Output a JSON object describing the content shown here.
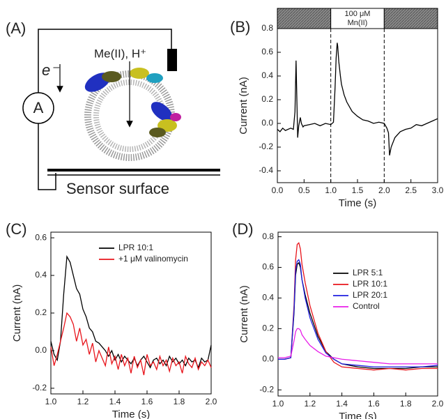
{
  "panel_a": {
    "label": "(A)",
    "ion_label": "Me(II), H⁺",
    "electron_label": "e⁻",
    "ammeter_label": "A",
    "surface_label": "Sensor surface"
  },
  "chart_data": [
    {
      "type": "line",
      "panel_label": "(B)",
      "xlabel": "Time (s)",
      "ylabel": "Current (nA)",
      "color": "#000000",
      "annotations": [
        "100 μM",
        "Mn(II)"
      ],
      "vlines": [
        1,
        2
      ],
      "x": [
        0,
        0.05,
        0.1,
        0.15,
        0.2,
        0.25,
        0.3,
        0.33,
        0.35,
        0.37,
        0.38,
        0.4,
        0.43,
        0.45,
        0.48,
        0.5,
        0.6,
        0.7,
        0.8,
        0.9,
        1.0,
        1.05,
        1.08,
        1.1,
        1.12,
        1.13,
        1.15,
        1.18,
        1.2,
        1.25,
        1.3,
        1.4,
        1.5,
        1.6,
        1.7,
        1.8,
        1.9,
        2.0,
        2.05,
        2.08,
        2.1,
        2.13,
        2.2,
        2.3,
        2.4,
        2.5,
        2.6,
        2.7,
        2.8,
        2.9,
        3.0
      ],
      "values": [
        -0.05,
        -0.07,
        -0.04,
        -0.06,
        -0.05,
        -0.04,
        -0.05,
        0.1,
        0.53,
        0.1,
        -0.12,
        -0.02,
        0.05,
        0.0,
        -0.03,
        -0.02,
        -0.01,
        0.0,
        -0.02,
        0.0,
        -0.01,
        0.01,
        0.3,
        0.55,
        0.68,
        0.65,
        0.52,
        0.4,
        0.33,
        0.24,
        0.18,
        0.1,
        0.06,
        0.03,
        0.02,
        0.0,
        0.01,
        0.0,
        -0.04,
        -0.08,
        -0.27,
        -0.2,
        -0.12,
        -0.07,
        -0.05,
        -0.04,
        -0.01,
        -0.02,
        0.0,
        0.02,
        0.04
      ],
      "xlim": [
        0,
        3
      ],
      "ylim": [
        -0.5,
        0.8
      ],
      "xticks": [
        {
          "value": 0,
          "label": "0.0"
        },
        0.5,
        {
          "value": 1,
          "label": "1.0"
        },
        1.5,
        {
          "value": 2,
          "label": "2.0"
        },
        2.5,
        {
          "value": 3,
          "label": "3.0"
        }
      ],
      "yticks": [
        -0.4,
        -0.2,
        {
          "value": 0,
          "label": "0.0"
        },
        0.2,
        0.4,
        0.6,
        0.8
      ]
    },
    {
      "type": "line",
      "panel_label": "(C)",
      "xlabel": "Time (s)",
      "ylabel": "Current (nA)",
      "x": [
        1.0,
        1.02,
        1.04,
        1.06,
        1.08,
        1.1,
        1.12,
        1.14,
        1.16,
        1.18,
        1.2,
        1.22,
        1.24,
        1.26,
        1.28,
        1.3,
        1.32,
        1.34,
        1.36,
        1.38,
        1.4,
        1.42,
        1.44,
        1.46,
        1.48,
        1.5,
        1.52,
        1.54,
        1.56,
        1.58,
        1.6,
        1.62,
        1.64,
        1.66,
        1.68,
        1.7,
        1.72,
        1.74,
        1.76,
        1.78,
        1.8,
        1.82,
        1.84,
        1.86,
        1.88,
        1.9,
        1.92,
        1.94,
        1.96,
        1.98,
        2.0
      ],
      "series": [
        {
          "name": "LPR 10:1",
          "color": "#000000",
          "values": [
            0.05,
            -0.02,
            -0.05,
            0.05,
            0.3,
            0.5,
            0.47,
            0.4,
            0.33,
            0.3,
            0.22,
            0.18,
            0.12,
            0.1,
            0.05,
            0.04,
            0.02,
            0.0,
            -0.03,
            0.0,
            -0.05,
            -0.02,
            -0.06,
            -0.03,
            -0.05,
            -0.07,
            -0.04,
            -0.08,
            -0.05,
            -0.03,
            -0.06,
            -0.09,
            -0.05,
            -0.04,
            -0.07,
            -0.05,
            -0.08,
            -0.03,
            -0.06,
            -0.04,
            -0.07,
            -0.05,
            -0.08,
            -0.04,
            -0.06,
            -0.05,
            -0.09,
            -0.04,
            -0.06,
            -0.05,
            0.03
          ]
        },
        {
          "name": "+1 μM valinomycin",
          "color": "#e8141b",
          "values": [
            0.02,
            -0.08,
            -0.02,
            0.05,
            0.12,
            0.2,
            0.18,
            0.14,
            0.05,
            0.12,
            0.03,
            0.06,
            -0.02,
            0.04,
            -0.06,
            0.0,
            -0.04,
            -0.08,
            0.02,
            -0.07,
            -0.03,
            -0.1,
            -0.02,
            -0.08,
            -0.04,
            -0.12,
            -0.03,
            -0.09,
            -0.05,
            -0.13,
            -0.02,
            -0.08,
            -0.06,
            -0.1,
            -0.03,
            -0.08,
            -0.05,
            -0.11,
            -0.04,
            -0.08,
            -0.06,
            -0.12,
            -0.03,
            -0.07,
            -0.09,
            -0.04,
            -0.1,
            -0.06,
            -0.08,
            -0.05,
            -0.09
          ]
        }
      ],
      "xlim": [
        1,
        2
      ],
      "ylim": [
        -0.23,
        0.63
      ],
      "xticks": [
        {
          "value": 1,
          "label": "1.0"
        },
        1.2,
        1.4,
        1.6,
        1.8,
        {
          "value": 2,
          "label": "2.0"
        }
      ],
      "yticks": [
        -0.2,
        {
          "value": 0,
          "label": "0.0"
        },
        0.2,
        0.4,
        0.6
      ]
    },
    {
      "type": "line",
      "panel_label": "(D)",
      "xlabel": "Time (s)",
      "ylabel": "Current (nA)",
      "x": [
        1.0,
        1.04,
        1.08,
        1.1,
        1.11,
        1.12,
        1.13,
        1.14,
        1.15,
        1.17,
        1.2,
        1.25,
        1.3,
        1.35,
        1.4,
        1.5,
        1.6,
        1.7,
        1.8,
        1.9,
        2.0
      ],
      "series": [
        {
          "name": "LPR 5:1",
          "color": "#000000",
          "values": [
            0,
            0,
            0.01,
            0.3,
            0.55,
            0.62,
            0.63,
            0.6,
            0.52,
            0.42,
            0.3,
            0.15,
            0.05,
            0,
            -0.03,
            -0.05,
            -0.06,
            -0.06,
            -0.06,
            -0.05,
            -0.05
          ]
        },
        {
          "name": "LPR 10:1",
          "color": "#e8141b",
          "values": [
            0,
            0,
            0.01,
            0.35,
            0.65,
            0.75,
            0.76,
            0.72,
            0.62,
            0.5,
            0.35,
            0.17,
            0.05,
            -0.02,
            -0.05,
            -0.06,
            -0.07,
            -0.06,
            -0.07,
            -0.06,
            -0.06
          ]
        },
        {
          "name": "LPR 20:1",
          "color": "#1f1fe0",
          "values": [
            0,
            0,
            0.01,
            0.32,
            0.58,
            0.64,
            0.65,
            0.62,
            0.52,
            0.4,
            0.27,
            0.13,
            0.04,
            0,
            -0.03,
            -0.04,
            -0.05,
            -0.05,
            -0.05,
            -0.05,
            -0.04
          ]
        },
        {
          "name": "Control",
          "color": "#e81ee8",
          "values": [
            0.01,
            0.01,
            0.02,
            0.12,
            0.18,
            0.2,
            0.2,
            0.19,
            0.16,
            0.13,
            0.09,
            0.05,
            0.02,
            0.01,
            0,
            -0.01,
            -0.02,
            -0.03,
            -0.03,
            -0.03,
            -0.03
          ]
        }
      ],
      "xlim": [
        1,
        2
      ],
      "ylim": [
        -0.24,
        0.83
      ],
      "xticks": [
        {
          "value": 1,
          "label": "1.0"
        },
        1.2,
        1.4,
        1.6,
        1.8,
        {
          "value": 2,
          "label": "2.0"
        }
      ],
      "yticks": [
        -0.2,
        {
          "value": 0,
          "label": "0.0"
        },
        0.2,
        0.4,
        0.6,
        0.8
      ]
    }
  ]
}
